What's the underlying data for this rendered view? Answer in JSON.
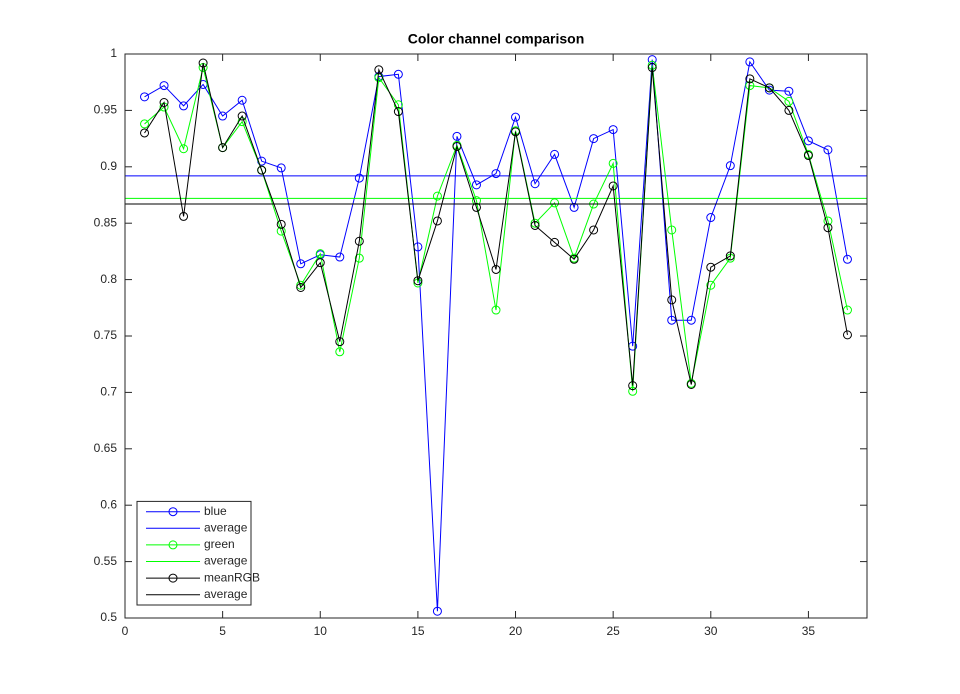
{
  "chart_data": {
    "type": "line",
    "title": "Color channel comparison",
    "xlim": [
      0,
      38
    ],
    "ylim": [
      0.5,
      1
    ],
    "xticks": [
      0,
      5,
      10,
      15,
      20,
      25,
      30,
      35
    ],
    "yticks": [
      0.5,
      0.55,
      0.6,
      0.65,
      0.7,
      0.75,
      0.8,
      0.85,
      0.9,
      0.95,
      1
    ],
    "legend": "southwest",
    "x": [
      1,
      2,
      3,
      4,
      5,
      6,
      7,
      8,
      9,
      10,
      11,
      12,
      13,
      14,
      15,
      16,
      17,
      18,
      19,
      20,
      21,
      22,
      23,
      24,
      25,
      26,
      27,
      28,
      29,
      30,
      31,
      32,
      33,
      34,
      35,
      36,
      37
    ],
    "series": [
      {
        "name": "blue",
        "color": "#0000ff",
        "marker": "o",
        "values": [
          0.962,
          0.972,
          0.954,
          0.973,
          0.945,
          0.959,
          0.905,
          0.899,
          0.814,
          0.822,
          0.82,
          0.89,
          0.98,
          0.982,
          0.829,
          0.506,
          0.927,
          0.884,
          0.894,
          0.944,
          0.885,
          0.911,
          0.864,
          0.925,
          0.933,
          0.741,
          0.995,
          0.764,
          0.764,
          0.855,
          0.901,
          0.993,
          0.968,
          0.967,
          0.923,
          0.915,
          0.818
        ]
      },
      {
        "name": "average",
        "color": "#0000ff",
        "level": 0.892
      },
      {
        "name": "green",
        "color": "#00ff00",
        "marker": "o",
        "values": [
          0.938,
          0.953,
          0.916,
          0.988,
          0.917,
          0.94,
          0.897,
          0.843,
          0.795,
          0.823,
          0.736,
          0.819,
          0.979,
          0.955,
          0.797,
          0.874,
          0.919,
          0.87,
          0.773,
          0.932,
          0.85,
          0.868,
          0.819,
          0.867,
          0.903,
          0.701,
          0.99,
          0.844,
          0.708,
          0.795,
          0.819,
          0.972,
          0.97,
          0.958,
          0.911,
          0.852,
          0.773
        ]
      },
      {
        "name": "average",
        "color": "#00ff00",
        "level": 0.872
      },
      {
        "name": "meanRGB",
        "color": "#000000",
        "marker": "o",
        "values": [
          0.93,
          0.957,
          0.856,
          0.992,
          0.917,
          0.945,
          0.897,
          0.849,
          0.793,
          0.815,
          0.745,
          0.834,
          0.986,
          0.949,
          0.799,
          0.852,
          0.918,
          0.864,
          0.809,
          0.931,
          0.848,
          0.833,
          0.818,
          0.844,
          0.883,
          0.706,
          0.988,
          0.782,
          0.707,
          0.811,
          0.821,
          0.978,
          0.97,
          0.95,
          0.91,
          0.846,
          0.751
        ]
      },
      {
        "name": "average",
        "color": "#000000",
        "level": 0.867
      }
    ]
  }
}
